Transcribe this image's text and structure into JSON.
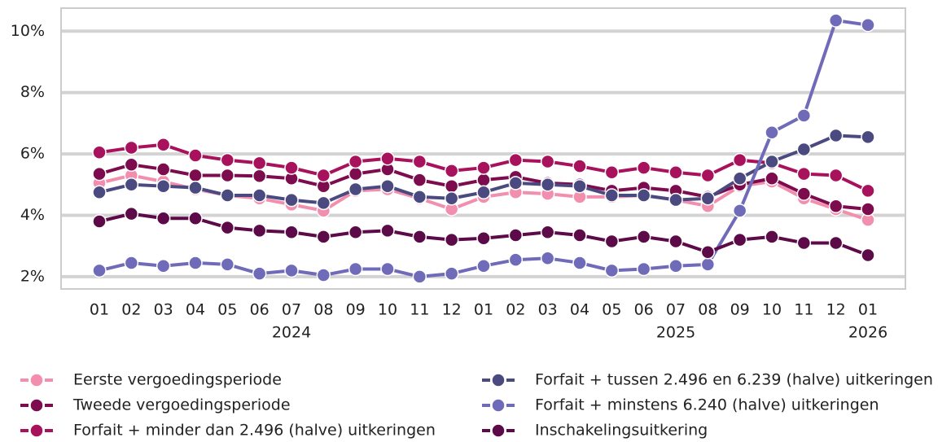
{
  "chart_data": {
    "type": "line",
    "categories": [
      "01",
      "02",
      "03",
      "04",
      "05",
      "06",
      "07",
      "08",
      "09",
      "10",
      "11",
      "12",
      "01",
      "02",
      "03",
      "04",
      "05",
      "06",
      "07",
      "08",
      "09",
      "10",
      "11",
      "12",
      "01"
    ],
    "years": [
      "2024",
      "2025",
      "2026"
    ],
    "ylim": [
      1.6,
      10.75
    ],
    "yticks": [
      {
        "value": 2,
        "label": "2%"
      },
      {
        "value": 4,
        "label": "4%"
      },
      {
        "value": 6,
        "label": "6%"
      },
      {
        "value": 8,
        "label": "8%"
      },
      {
        "value": 10,
        "label": "10%"
      }
    ],
    "grid": true,
    "legend": "bottom",
    "series": [
      {
        "name": "Eerste vergoedingsperiode",
        "color": "#f28fae",
        "values": [
          5.05,
          5.3,
          5.1,
          4.85,
          4.65,
          4.55,
          4.35,
          4.15,
          4.8,
          4.85,
          4.55,
          4.2,
          4.6,
          4.75,
          4.7,
          4.6,
          4.6,
          4.65,
          4.5,
          4.3,
          4.95,
          5.1,
          4.55,
          4.2,
          3.85
        ]
      },
      {
        "name": "Tweede vergoedingsperiode",
        "color": "#7d0c4e",
        "values": [
          5.35,
          5.65,
          5.5,
          5.3,
          5.3,
          5.28,
          5.2,
          4.95,
          5.35,
          5.5,
          5.15,
          4.95,
          5.15,
          5.25,
          5.05,
          5.0,
          4.8,
          4.9,
          4.8,
          4.6,
          5.0,
          5.2,
          4.7,
          4.3,
          4.2
        ]
      },
      {
        "name": "Forfait + minder dan 2.496 (halve) uitkeringen",
        "color": "#a8125c",
        "values": [
          6.05,
          6.2,
          6.3,
          5.95,
          5.8,
          5.7,
          5.55,
          5.3,
          5.75,
          5.85,
          5.75,
          5.45,
          5.55,
          5.8,
          5.75,
          5.6,
          5.4,
          5.55,
          5.4,
          5.3,
          5.8,
          5.7,
          5.35,
          5.3,
          4.8
        ]
      },
      {
        "name": "Forfait + tussen 2.496 en 6.239 (halve) uitkeringen",
        "color": "#4b4a80",
        "values": [
          4.75,
          5.0,
          4.95,
          4.9,
          4.65,
          4.65,
          4.5,
          4.4,
          4.85,
          4.95,
          4.6,
          4.55,
          4.75,
          5.05,
          5.0,
          4.95,
          4.65,
          4.65,
          4.5,
          4.55,
          5.2,
          5.75,
          6.15,
          6.6,
          6.55
        ]
      },
      {
        "name": "Forfait + minstens 6.240 (halve) uitkeringen",
        "color": "#6f6bb8",
        "values": [
          2.2,
          2.45,
          2.35,
          2.45,
          2.4,
          2.1,
          2.2,
          2.05,
          2.25,
          2.25,
          2.0,
          2.1,
          2.35,
          2.55,
          2.6,
          2.45,
          2.2,
          2.25,
          2.35,
          2.4,
          4.15,
          6.7,
          7.25,
          10.35,
          10.2
        ]
      },
      {
        "name": "Inschakelingsuitkering",
        "color": "#5c0a48",
        "values": [
          3.8,
          4.05,
          3.9,
          3.9,
          3.6,
          3.5,
          3.45,
          3.3,
          3.45,
          3.5,
          3.3,
          3.2,
          3.25,
          3.35,
          3.45,
          3.35,
          3.15,
          3.3,
          3.15,
          2.8,
          3.2,
          3.3,
          3.1,
          3.1,
          2.7
        ]
      }
    ]
  }
}
